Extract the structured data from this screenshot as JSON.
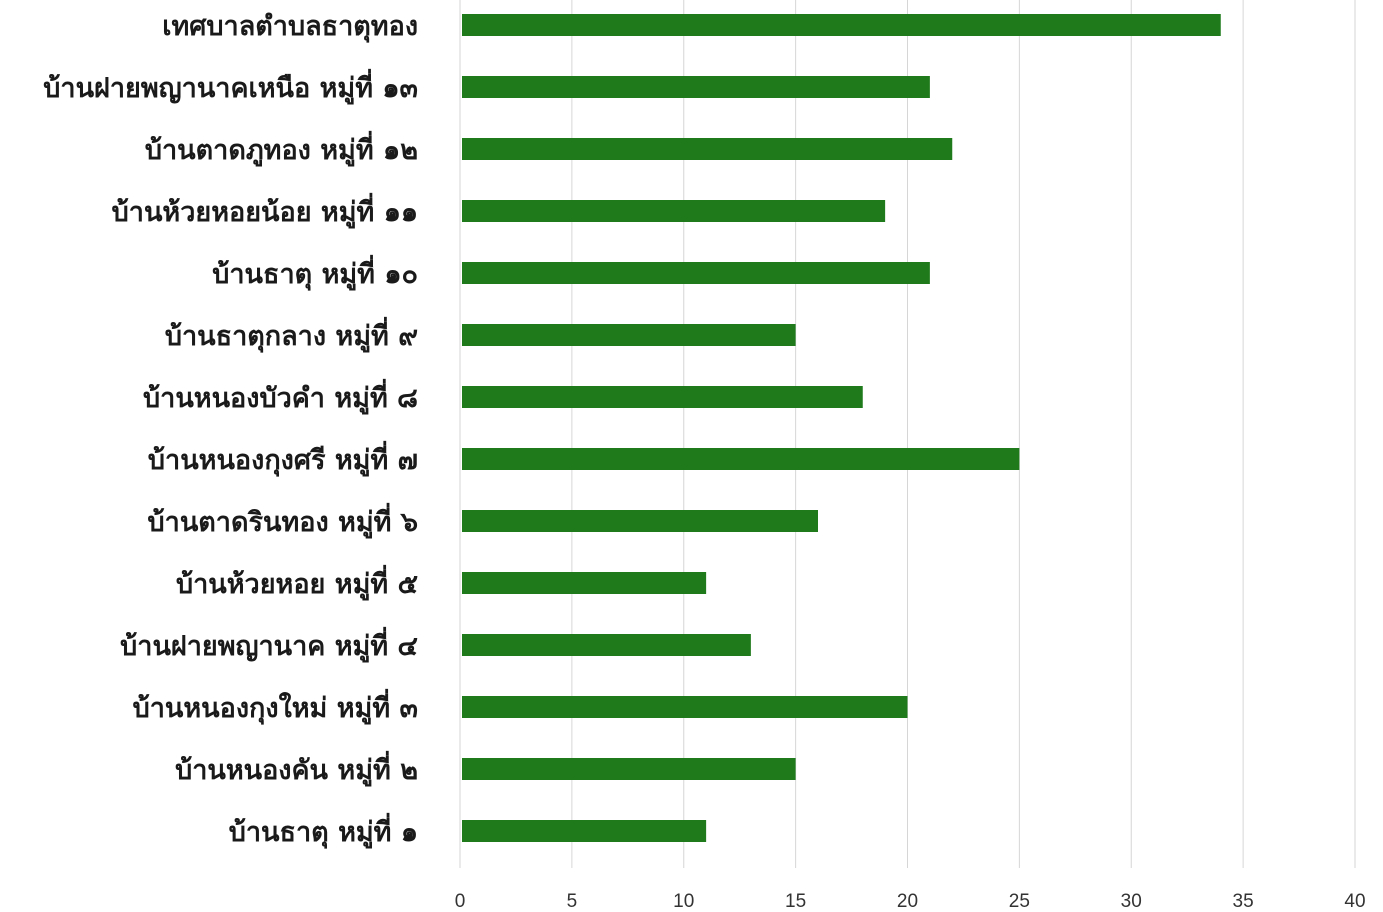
{
  "chart_data": {
    "type": "bar",
    "orientation": "horizontal",
    "categories": [
      "เทศบาลตำบลธาตุทอง",
      "บ้านฝายพญานาคเหนือ หมู่ที่ ๑๓",
      "บ้านตาดภูทอง หมู่ที่ ๑๒",
      "บ้านห้วยหอยน้อย หมู่ที่ ๑๑",
      "บ้านธาตุ หมู่ที่ ๑๐",
      "บ้านธาตุกลาง หมู่ที่ ๙",
      "บ้านหนองบัวคำ หมู่ที่ ๘",
      "บ้านหนองกุงศรี หมู่ที่ ๗",
      "บ้านตาดรินทอง หมู่ที่ ๖",
      "บ้านห้วยหอย หมู่ที่ ๕",
      "บ้านฝายพญานาค หมู่ที่ ๔",
      "บ้านหนองกุงใหม่ หมู่ที่ ๓",
      "บ้านหนองคัน หมู่ที่ ๒",
      "บ้านธาตุ หมู่ที่ ๑"
    ],
    "values": [
      34,
      21,
      22,
      19,
      21,
      15,
      18,
      25,
      16,
      11,
      13,
      20,
      15,
      11
    ],
    "xlim": [
      0,
      40
    ],
    "ticks": [
      "0",
      "5",
      "10",
      "15",
      "20",
      "25",
      "30",
      "35",
      "40"
    ],
    "grid": true,
    "legend": "none",
    "bar_color": "#1f7a1c"
  }
}
